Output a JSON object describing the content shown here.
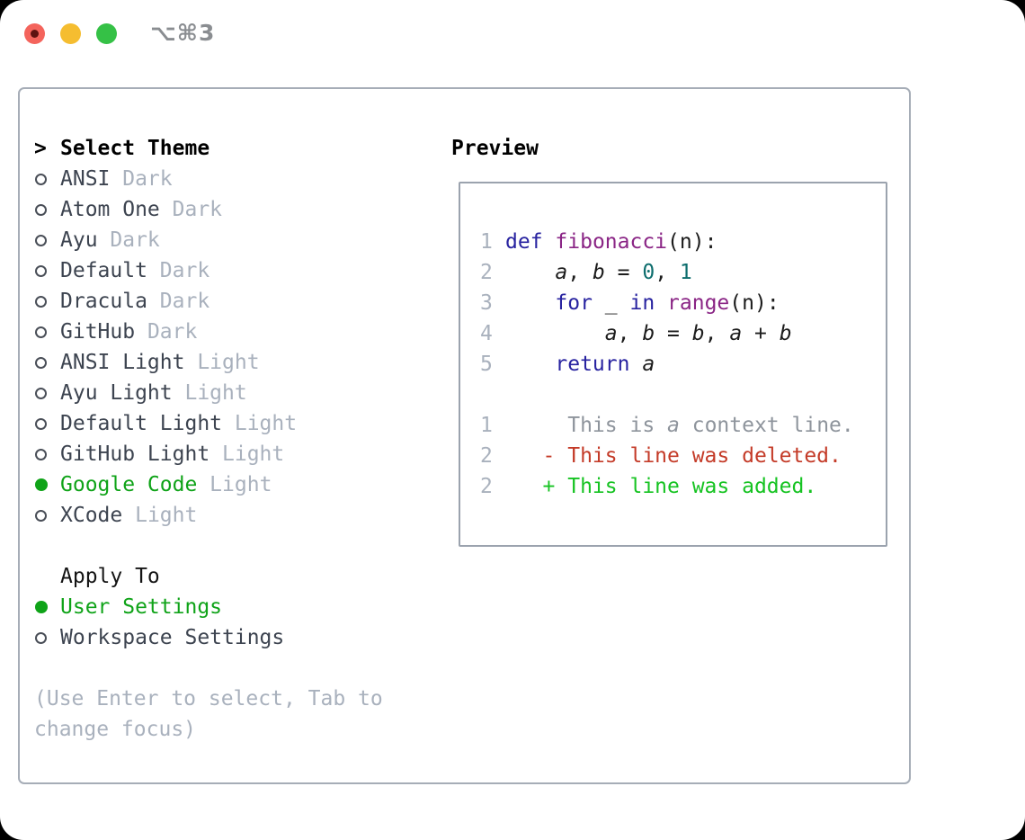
{
  "window": {
    "title": "⌥⌘3",
    "traffic_colors": {
      "red": "#f4645c",
      "red_inner_dot": "#5e1210",
      "yellow": "#f5bd30",
      "green": "#35c146"
    }
  },
  "colors": {
    "accent_green": "#0fa318",
    "diff_added_green": "#16c322",
    "diff_deleted_red": "#c43b28",
    "keyword_blue": "#2823a0",
    "function_purple": "#8a2585",
    "literal_teal": "#0e6e6e",
    "muted_gray": "#a9b1bd",
    "panel_border": "#a6adb7"
  },
  "theme_picker": {
    "prompt": ">",
    "title": "Select Theme",
    "items": [
      {
        "name": "ANSI",
        "tag": "Dark",
        "selected": false
      },
      {
        "name": "Atom One",
        "tag": "Dark",
        "selected": false
      },
      {
        "name": "Ayu",
        "tag": "Dark",
        "selected": false
      },
      {
        "name": "Default",
        "tag": "Dark",
        "selected": false
      },
      {
        "name": "Dracula",
        "tag": "Dark",
        "selected": false
      },
      {
        "name": "GitHub",
        "tag": "Dark",
        "selected": false
      },
      {
        "name": "ANSI Light",
        "tag": "Light",
        "selected": false
      },
      {
        "name": "Ayu Light",
        "tag": "Light",
        "selected": false
      },
      {
        "name": "Default Light",
        "tag": "Light",
        "selected": false
      },
      {
        "name": "GitHub Light",
        "tag": "Light",
        "selected": false
      },
      {
        "name": "Google Code",
        "tag": "Light",
        "selected": true
      },
      {
        "name": "XCode",
        "tag": "Light",
        "selected": false
      }
    ],
    "apply_to": {
      "title": "Apply To",
      "options": [
        {
          "label": "User Settings",
          "selected": true
        },
        {
          "label": "Workspace Settings",
          "selected": false
        }
      ]
    },
    "help_lines": [
      "(Use Enter to select, Tab to",
      "change focus)"
    ]
  },
  "preview": {
    "title": "Preview",
    "lines": [
      {
        "num": "1",
        "tokens": [
          [
            "kwd",
            "def"
          ],
          [
            "pln",
            " "
          ],
          [
            "fun",
            "fibonacci"
          ],
          [
            "pln",
            "(n):"
          ]
        ]
      },
      {
        "num": "2",
        "tokens": [
          [
            "pln",
            "    "
          ],
          [
            "var",
            "a"
          ],
          [
            "pln",
            ", "
          ],
          [
            "var",
            "b"
          ],
          [
            "pln",
            " = "
          ],
          [
            "lit",
            "0"
          ],
          [
            "pln",
            ", "
          ],
          [
            "lit",
            "1"
          ]
        ]
      },
      {
        "num": "3",
        "tokens": [
          [
            "pln",
            "    "
          ],
          [
            "kwd",
            "for"
          ],
          [
            "pln",
            " _ "
          ],
          [
            "kwd",
            "in"
          ],
          [
            "pln",
            " "
          ],
          [
            "fun",
            "range"
          ],
          [
            "pln",
            "(n):"
          ]
        ]
      },
      {
        "num": "4",
        "tokens": [
          [
            "pln",
            "        "
          ],
          [
            "var",
            "a"
          ],
          [
            "pln",
            ", "
          ],
          [
            "var",
            "b"
          ],
          [
            "pln",
            " = "
          ],
          [
            "var",
            "b"
          ],
          [
            "pln",
            ", "
          ],
          [
            "var",
            "a"
          ],
          [
            "pln",
            " + "
          ],
          [
            "var",
            "b"
          ]
        ]
      },
      {
        "num": "5",
        "tokens": [
          [
            "pln",
            "    "
          ],
          [
            "kwd",
            "return"
          ],
          [
            "pln",
            " "
          ],
          [
            "var",
            "a"
          ]
        ]
      },
      {
        "num": "",
        "tokens": []
      },
      {
        "num": "1",
        "tokens": [
          [
            "ctx",
            "     This is "
          ],
          [
            "ctx-i",
            "a"
          ],
          [
            "ctx",
            " context line."
          ]
        ]
      },
      {
        "num": "2",
        "tokens": [
          [
            "del",
            "   - This line was deleted."
          ]
        ]
      },
      {
        "num": "2",
        "tokens": [
          [
            "add",
            "   + This line was added."
          ]
        ]
      }
    ]
  }
}
